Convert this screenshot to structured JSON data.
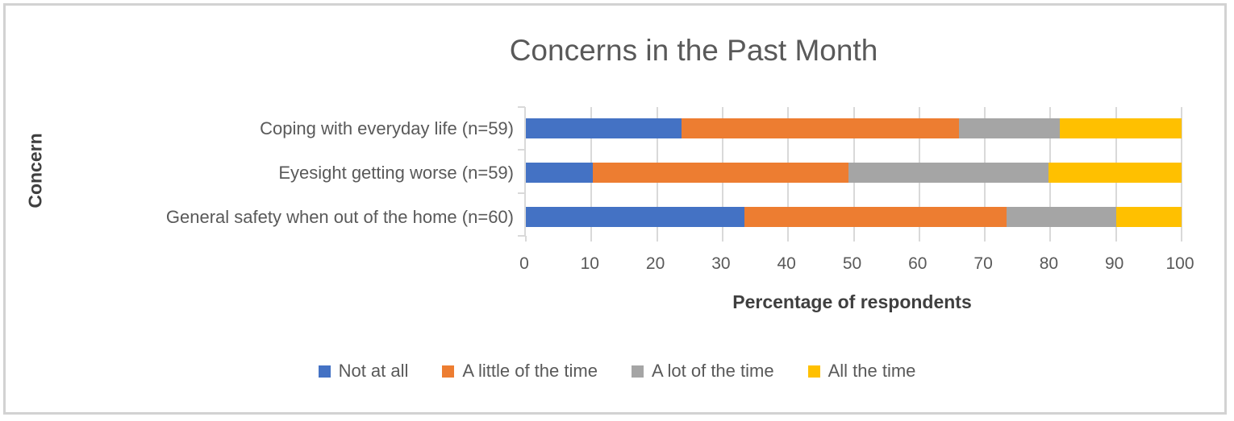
{
  "chart_data": {
    "type": "bar",
    "orientation": "horizontal",
    "stacked": true,
    "title": "Concerns in the Past Month",
    "xlabel": "Percentage of respondents",
    "ylabel": "Concern",
    "xlim": [
      0,
      100
    ],
    "x_ticks": [
      0,
      10,
      20,
      30,
      40,
      50,
      60,
      70,
      80,
      90,
      100
    ],
    "grid": true,
    "legend_position": "bottom",
    "categories": [
      "Coping with everyday life (n=59)",
      "Eyesight getting worse (n=59)",
      "General safety when out of the home (n=60)"
    ],
    "series": [
      {
        "name": "Not at all",
        "color": "#4472C4",
        "values": [
          23.7,
          10.2,
          33.3
        ]
      },
      {
        "name": "A little of the time",
        "color": "#ED7D31",
        "values": [
          42.4,
          39.0,
          40.0
        ]
      },
      {
        "name": "A lot of the time",
        "color": "#A5A5A5",
        "values": [
          15.3,
          30.5,
          16.7
        ]
      },
      {
        "name": "All the time",
        "color": "#FFC000",
        "values": [
          18.6,
          20.3,
          10.0
        ]
      }
    ]
  },
  "colors": {
    "text": "#595959",
    "axis_title_text": "#3F3F3F",
    "gridline": "#D9D9D9",
    "frame_border": "#D2D2D2",
    "background": "#FFFFFF"
  }
}
